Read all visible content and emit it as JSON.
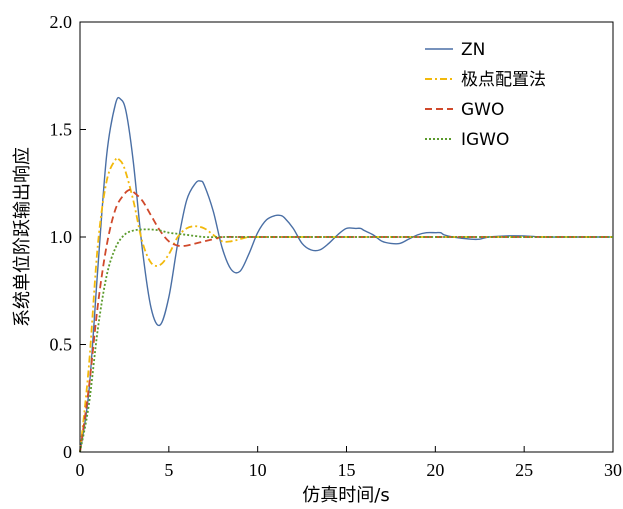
{
  "chart_data": {
    "type": "line",
    "xlabel": "仿真时间/s",
    "ylabel": "系统单位阶跃输出响应",
    "xlim": [
      0,
      30
    ],
    "ylim": [
      0,
      2.0
    ],
    "xticks": [
      0,
      5,
      10,
      15,
      20,
      25,
      30
    ],
    "yticks": [
      0,
      0.5,
      1.0,
      1.5,
      2.0
    ],
    "xtick_labels": [
      "0",
      "5",
      "10",
      "15",
      "20",
      "25",
      "30"
    ],
    "ytick_labels": [
      "0",
      "0.5",
      "1.0",
      "1.5",
      "2.0"
    ],
    "grid": false,
    "legend_position": "top-right",
    "series": [
      {
        "name": "ZN",
        "color": "#4a6fa5",
        "style": "solid",
        "x": [
          0,
          0.5,
          1,
          1.5,
          2,
          2.3,
          2.6,
          3,
          3.5,
          4,
          4.5,
          5,
          5.5,
          6,
          6.5,
          6.8,
          7,
          7.5,
          8,
          8.5,
          9,
          9.5,
          10,
          10.5,
          11,
          11.3,
          11.5,
          12,
          12.5,
          13,
          13.5,
          14,
          14.5,
          15,
          15.5,
          15.8,
          16,
          16.5,
          17,
          17.5,
          18,
          18.5,
          19,
          19.5,
          20,
          20.3,
          20.5,
          21,
          22,
          22.5,
          23,
          24,
          25,
          26,
          27,
          28,
          29,
          30
        ],
        "y": [
          0,
          0.28,
          0.85,
          1.38,
          1.62,
          1.64,
          1.58,
          1.35,
          0.95,
          0.67,
          0.59,
          0.72,
          0.97,
          1.17,
          1.25,
          1.26,
          1.24,
          1.12,
          0.95,
          0.85,
          0.84,
          0.92,
          1.02,
          1.08,
          1.1,
          1.1,
          1.09,
          1.04,
          0.97,
          0.94,
          0.94,
          0.97,
          1.01,
          1.04,
          1.04,
          1.04,
          1.03,
          1.01,
          0.98,
          0.97,
          0.97,
          0.99,
          1.01,
          1.02,
          1.02,
          1.02,
          1.01,
          1.0,
          0.99,
          0.99,
          1.0,
          1.005,
          1.005,
          1.0,
          1.0,
          1.0,
          1.0,
          1.0
        ]
      },
      {
        "name": "极点配置法",
        "color": "#f2b90c",
        "style": "dashdot",
        "x": [
          0,
          0.5,
          1,
          1.5,
          2,
          2.2,
          2.5,
          3,
          3.5,
          4,
          4.5,
          5,
          5.5,
          6,
          6.5,
          7,
          7.5,
          8,
          8.5,
          9,
          9.5,
          10,
          11,
          12,
          13,
          15,
          20,
          25,
          30
        ],
        "y": [
          0,
          0.4,
          0.96,
          1.26,
          1.36,
          1.36,
          1.32,
          1.17,
          0.98,
          0.88,
          0.87,
          0.92,
          1.0,
          1.04,
          1.05,
          1.04,
          1.01,
          0.98,
          0.98,
          0.99,
          1.0,
          1.0,
          1.0,
          1.0,
          1.0,
          1.0,
          1.0,
          1.0,
          1.0
        ]
      },
      {
        "name": "GWO",
        "color": "#d0492b",
        "style": "dashed",
        "x": [
          0,
          0.5,
          1,
          1.5,
          2,
          2.5,
          2.8,
          3,
          3.5,
          4,
          4.5,
          5,
          5.5,
          6,
          6.5,
          7,
          7.5,
          8,
          9,
          10,
          11,
          12,
          15,
          20,
          25,
          30
        ],
        "y": [
          0,
          0.3,
          0.68,
          0.96,
          1.13,
          1.2,
          1.22,
          1.21,
          1.17,
          1.1,
          1.03,
          0.98,
          0.96,
          0.96,
          0.97,
          0.98,
          0.99,
          1.0,
          1.0,
          1.0,
          1.0,
          1.0,
          1.0,
          1.0,
          1.0,
          1.0
        ]
      },
      {
        "name": "IGWO",
        "color": "#5a9a2c",
        "style": "dotted",
        "x": [
          0,
          0.5,
          1,
          1.5,
          2,
          2.5,
          3,
          3.5,
          4,
          4.5,
          5,
          5.5,
          6,
          7,
          8,
          9,
          10,
          12,
          15,
          20,
          25,
          30
        ],
        "y": [
          0,
          0.22,
          0.57,
          0.82,
          0.95,
          1.01,
          1.03,
          1.035,
          1.035,
          1.03,
          1.02,
          1.015,
          1.01,
          1.0,
          1.0,
          1.0,
          1.0,
          1.0,
          1.0,
          1.0,
          1.0,
          1.0
        ]
      }
    ]
  }
}
